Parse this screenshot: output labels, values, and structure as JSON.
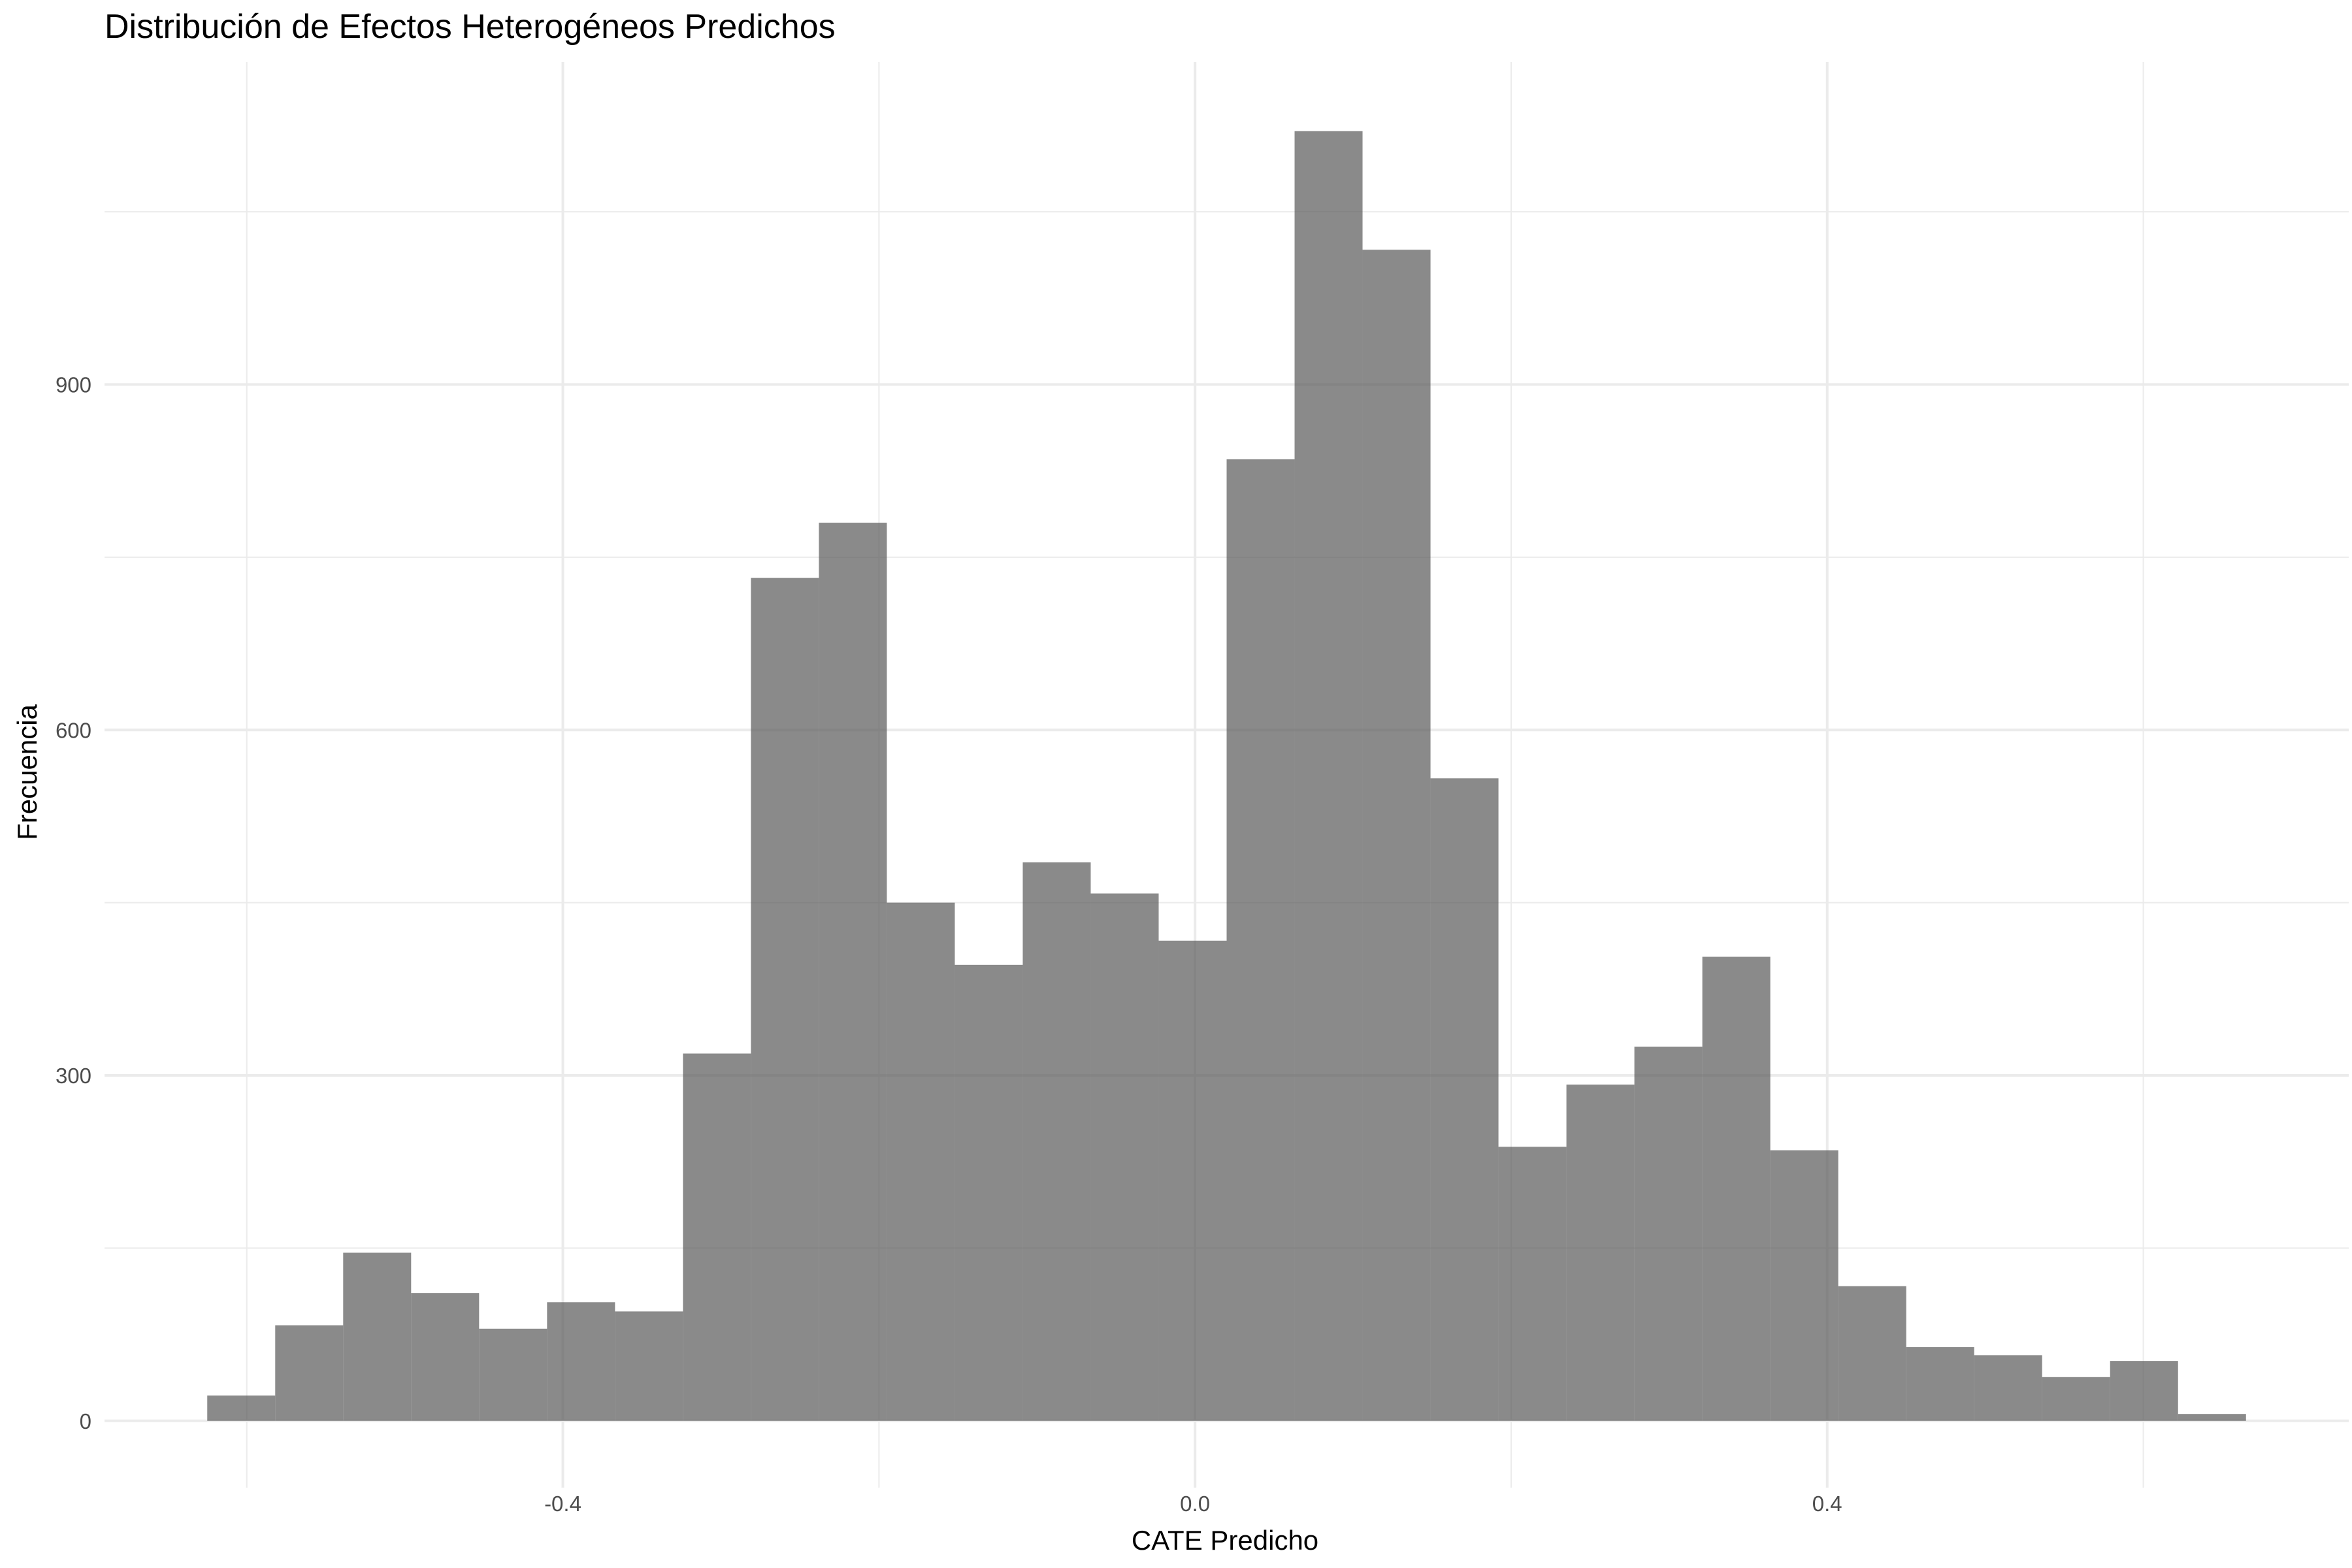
{
  "chart_data": {
    "type": "bar",
    "title": "Distribución de Efectos Heterogéneos Predichos",
    "xlabel": "CATE Predicho",
    "ylabel": "Frecuencia",
    "bin_width": 0.043,
    "bins": [
      {
        "x0": -0.625,
        "x1": -0.582,
        "count": 22
      },
      {
        "x0": -0.582,
        "x1": -0.539,
        "count": 83
      },
      {
        "x0": -0.539,
        "x1": -0.496,
        "count": 146
      },
      {
        "x0": -0.496,
        "x1": -0.453,
        "count": 111
      },
      {
        "x0": -0.453,
        "x1": -0.41,
        "count": 80
      },
      {
        "x0": -0.41,
        "x1": -0.367,
        "count": 103
      },
      {
        "x0": -0.367,
        "x1": -0.324,
        "count": 95
      },
      {
        "x0": -0.324,
        "x1": -0.281,
        "count": 319
      },
      {
        "x0": -0.281,
        "x1": -0.238,
        "count": 732
      },
      {
        "x0": -0.238,
        "x1": -0.195,
        "count": 780
      },
      {
        "x0": -0.195,
        "x1": -0.152,
        "count": 450
      },
      {
        "x0": -0.152,
        "x1": -0.109,
        "count": 396
      },
      {
        "x0": -0.109,
        "x1": -0.066,
        "count": 485
      },
      {
        "x0": -0.066,
        "x1": -0.023,
        "count": 458
      },
      {
        "x0": -0.023,
        "x1": 0.02,
        "count": 417
      },
      {
        "x0": 0.02,
        "x1": 0.063,
        "count": 835
      },
      {
        "x0": 0.063,
        "x1": 0.106,
        "count": 1120
      },
      {
        "x0": 0.106,
        "x1": 0.149,
        "count": 1017
      },
      {
        "x0": 0.149,
        "x1": 0.192,
        "count": 558
      },
      {
        "x0": 0.192,
        "x1": 0.235,
        "count": 238
      },
      {
        "x0": 0.235,
        "x1": 0.278,
        "count": 292
      },
      {
        "x0": 0.278,
        "x1": 0.321,
        "count": 325
      },
      {
        "x0": 0.321,
        "x1": 0.364,
        "count": 403
      },
      {
        "x0": 0.364,
        "x1": 0.407,
        "count": 235
      },
      {
        "x0": 0.407,
        "x1": 0.45,
        "count": 117
      },
      {
        "x0": 0.45,
        "x1": 0.493,
        "count": 64
      },
      {
        "x0": 0.493,
        "x1": 0.536,
        "count": 57
      },
      {
        "x0": 0.536,
        "x1": 0.579,
        "count": 38
      },
      {
        "x0": 0.579,
        "x1": 0.622,
        "count": 52
      },
      {
        "x0": 0.622,
        "x1": 0.665,
        "count": 6
      }
    ],
    "xlim": [
      -0.69,
      0.73
    ],
    "ylim": [
      -58,
      1180
    ],
    "x_ticks": [
      {
        "value": -0.4,
        "label": "-0.4"
      },
      {
        "value": 0.0,
        "label": "0.0"
      },
      {
        "value": 0.4,
        "label": "0.4"
      }
    ],
    "x_minor_ticks": [
      -0.6,
      -0.2,
      0.2,
      0.6
    ],
    "y_ticks": [
      {
        "value": 0,
        "label": "0"
      },
      {
        "value": 300,
        "label": "300"
      },
      {
        "value": 600,
        "label": "600"
      },
      {
        "value": 900,
        "label": "900"
      }
    ],
    "y_minor_ticks": [
      150,
      450,
      750,
      1050
    ],
    "grid": true,
    "legend": "none",
    "bar_color": "#595959"
  }
}
